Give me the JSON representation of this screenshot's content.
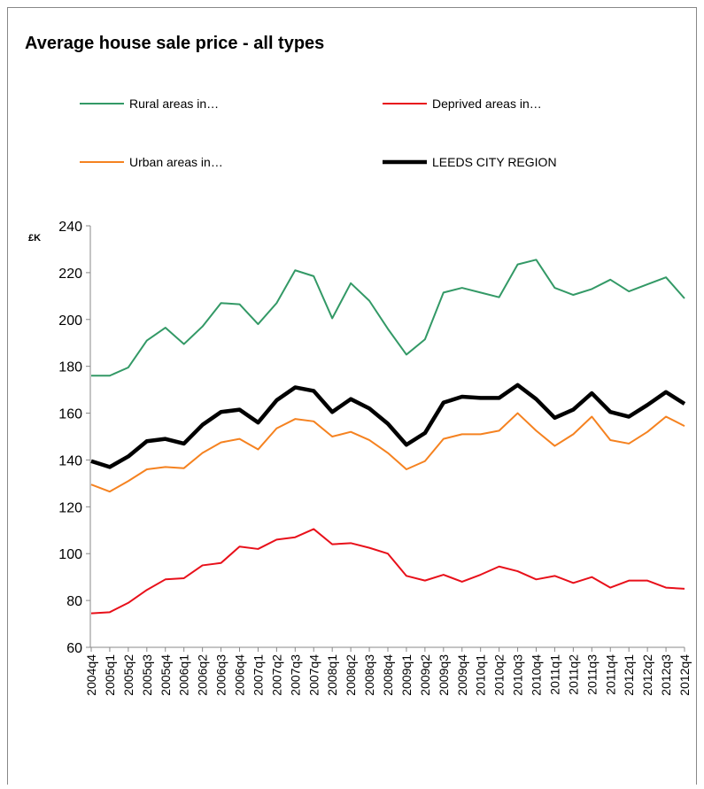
{
  "chart_data": {
    "type": "line",
    "title": "Average house sale price - all types",
    "y_label": "£K",
    "categories": [
      "2004q4",
      "2005q1",
      "2005q2",
      "2005q3",
      "2005q4",
      "2006q1",
      "2006q2",
      "2006q3",
      "2006q4",
      "2007q1",
      "2007q2",
      "2007q3",
      "2007q4",
      "2008q1",
      "2008q2",
      "2008q3",
      "2008q4",
      "2009q1",
      "2009q2",
      "2009q3",
      "2009q4",
      "2010q1",
      "2010q2",
      "2010q3",
      "2010q4",
      "2011q1",
      "2011q2",
      "2011q3",
      "2011q4",
      "2012q1",
      "2012q2",
      "2012q3",
      "2012q4"
    ],
    "series": [
      {
        "name": "Rural areas in…",
        "color": "#339966",
        "width": 2,
        "values": [
          176,
          176,
          179.5,
          191,
          196.5,
          189.5,
          197,
          207,
          206.5,
          198,
          207,
          221,
          218.5,
          200.5,
          215.5,
          208,
          196,
          185,
          191.5,
          211.5,
          213.5,
          211.5,
          209.5,
          223.5,
          225.5,
          213.5,
          210.5,
          213,
          217,
          212,
          215,
          218,
          209
        ]
      },
      {
        "name": "Deprived areas in…",
        "color": "#e8101a",
        "width": 2,
        "values": [
          74.5,
          75,
          79,
          84.5,
          89,
          89.5,
          95,
          96,
          103,
          102,
          106,
          107,
          110.5,
          104,
          104.5,
          102.5,
          100,
          90.5,
          88.5,
          91,
          88,
          91,
          94.5,
          92.5,
          89,
          90.5,
          87.5,
          90,
          85.5,
          88.5,
          88.5,
          85.5,
          85
        ]
      },
      {
        "name": "Urban areas in…",
        "color": "#f58220",
        "width": 2,
        "values": [
          129.5,
          126.5,
          131,
          136,
          137,
          136.5,
          143,
          147.5,
          149,
          144.5,
          153.5,
          157.5,
          156.5,
          150,
          152,
          148.5,
          143,
          136,
          139.5,
          149,
          151,
          151,
          152.5,
          160,
          152.5,
          146,
          151,
          158.5,
          148.5,
          147,
          152,
          158.5,
          154.5
        ]
      },
      {
        "name": "LEEDS CITY REGION",
        "color": "#000000",
        "width": 4.5,
        "values": [
          139.5,
          137,
          141.5,
          148,
          149,
          147,
          155,
          160.5,
          161.5,
          156,
          165.5,
          171,
          169.5,
          160.5,
          166,
          162,
          155.5,
          146.5,
          151.5,
          164.5,
          167,
          166.5,
          166.5,
          172,
          166,
          158,
          161.5,
          168.5,
          160.5,
          158.5,
          163.5,
          169,
          164
        ]
      }
    ],
    "ylim": [
      60,
      240
    ],
    "yticks": [
      60,
      80,
      100,
      120,
      140,
      160,
      180,
      200,
      220,
      240
    ],
    "grid": false
  }
}
